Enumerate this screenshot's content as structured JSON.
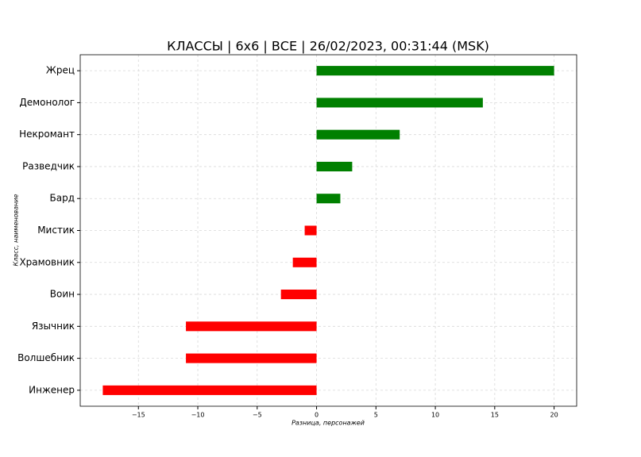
{
  "chart_data": {
    "type": "barh",
    "title": "КЛАССЫ | 6x6 | ВСЕ | 26/02/2023, 00:31:44 (MSK)",
    "x_label": "Разница, персонажей",
    "y_label": "Класс, наименование",
    "categories": [
      "Жрец",
      "Демонолог",
      "Некромант",
      "Разведчик",
      "Бард",
      "Мистик",
      "Храмовник",
      "Воин",
      "Язычник",
      "Волшебник",
      "Инженер"
    ],
    "values": [
      20,
      14,
      7,
      3,
      2,
      -1,
      -2,
      -3,
      -11,
      -11,
      -18
    ],
    "colors": [
      "#008000",
      "#008000",
      "#008000",
      "#008000",
      "#008000",
      "#ff0000",
      "#ff0000",
      "#ff0000",
      "#ff0000",
      "#ff0000",
      "#ff0000"
    ],
    "xlim": [
      -19.9,
      21.9
    ],
    "xticks": [
      {
        "value": -15,
        "label": "−15"
      },
      {
        "value": -10,
        "label": "−10"
      },
      {
        "value": -5,
        "label": "−5"
      },
      0,
      5,
      10,
      15,
      20
    ],
    "grid": true
  }
}
